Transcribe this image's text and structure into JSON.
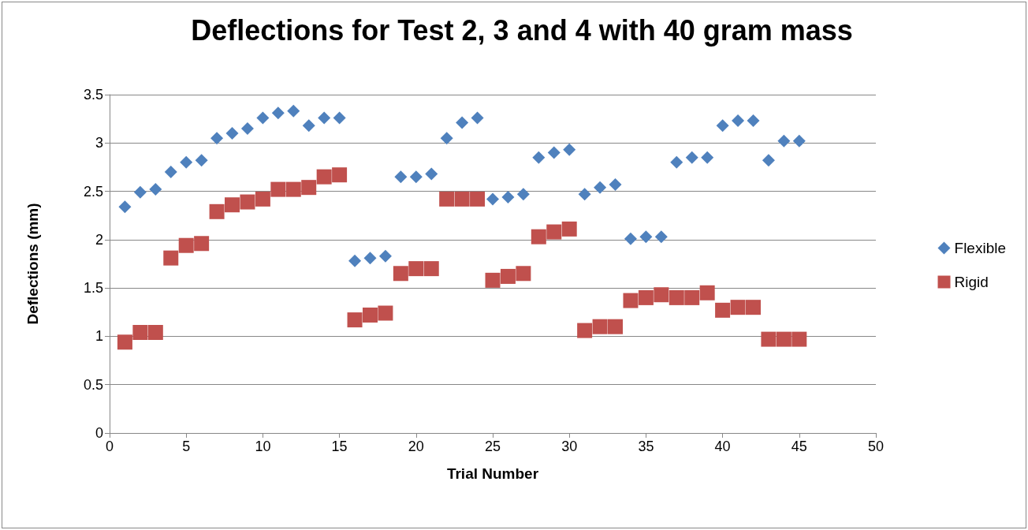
{
  "chart_data": {
    "type": "scatter",
    "title": "Deflections for Test 2, 3 and 4 with 40 gram mass",
    "xlabel": "Trial Number",
    "ylabel": "Deflections (mm)",
    "x": [
      1,
      2,
      3,
      4,
      5,
      6,
      7,
      8,
      9,
      10,
      11,
      12,
      13,
      14,
      15,
      16,
      17,
      18,
      19,
      20,
      21,
      22,
      23,
      24,
      25,
      26,
      27,
      28,
      29,
      30,
      31,
      32,
      33,
      34,
      35,
      36,
      37,
      38,
      39,
      40,
      41,
      42,
      43,
      44,
      45
    ],
    "series": [
      {
        "name": "Flexible",
        "color": "#4f81bd",
        "marker": "diamond",
        "values": [
          2.34,
          2.49,
          2.52,
          2.7,
          2.8,
          2.82,
          3.05,
          3.1,
          3.15,
          3.26,
          3.31,
          3.33,
          3.18,
          3.26,
          3.26,
          1.78,
          1.81,
          1.83,
          2.65,
          2.65,
          2.68,
          3.05,
          3.21,
          3.26,
          2.42,
          2.44,
          2.47,
          2.85,
          2.9,
          2.93,
          2.47,
          2.54,
          2.57,
          2.01,
          2.03,
          2.03,
          2.8,
          2.85,
          2.85,
          3.18,
          3.23,
          3.23,
          2.82,
          3.02,
          3.02
        ]
      },
      {
        "name": "Rigid",
        "color": "#c0504d",
        "marker": "square",
        "values": [
          0.94,
          1.04,
          1.04,
          1.81,
          1.94,
          1.96,
          2.29,
          2.36,
          2.39,
          2.42,
          2.52,
          2.52,
          2.54,
          2.65,
          2.67,
          1.17,
          1.22,
          1.24,
          1.65,
          1.7,
          1.7,
          2.42,
          2.42,
          2.42,
          1.58,
          1.62,
          1.65,
          2.03,
          2.08,
          2.11,
          1.06,
          1.1,
          1.1,
          1.37,
          1.4,
          1.43,
          1.4,
          1.4,
          1.45,
          1.27,
          1.3,
          1.3,
          0.97,
          0.97,
          0.97
        ]
      }
    ],
    "xlim": [
      0,
      50
    ],
    "xticks": [
      0,
      5,
      10,
      15,
      20,
      25,
      30,
      35,
      40,
      45,
      50
    ],
    "ylim": [
      0,
      3.5
    ],
    "yticks": [
      0,
      0.5,
      1,
      1.5,
      2,
      2.5,
      3,
      3.5
    ],
    "grid": "y",
    "legend": "right"
  }
}
